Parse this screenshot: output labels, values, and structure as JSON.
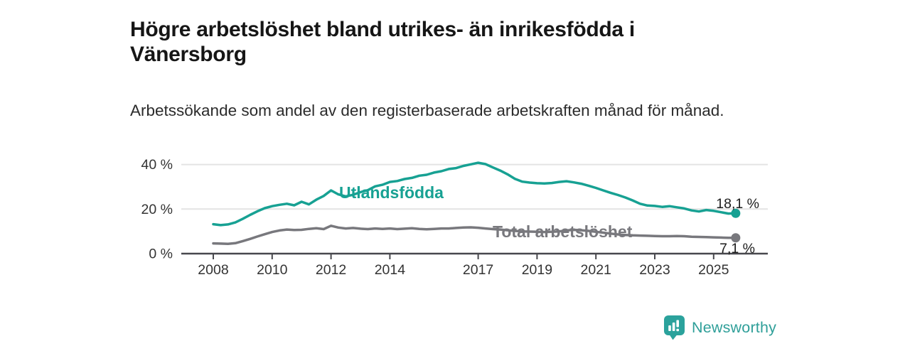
{
  "header": {
    "title": "Högre arbetslöshet bland utrikes- än inrikesfödda i Vänersborg",
    "subtitle": "Arbetssökande som andel av den registerbaserade arbetskraften månad för månad."
  },
  "colors": {
    "accent_teal": "#17a193",
    "series_gray": "#78787d",
    "grid": "#e4e4e4",
    "axis": "#48484d",
    "axis_text": "#333333",
    "logo_teal": "#2ba29c",
    "brand_text": "#2f9f99"
  },
  "chart_data": {
    "type": "line",
    "title": "Högre arbetslöshet bland utrikes- än inrikesfödda i Vänersborg",
    "subtitle": "Arbetssökande som andel av den registerbaserade arbetskraften månad för månad.",
    "unit": "%",
    "grid": true,
    "x_axis": {
      "range": [
        2006.9,
        2026.85
      ],
      "tick_values": [
        2008,
        2010,
        2012,
        2014,
        2017,
        2019,
        2021,
        2023,
        2025
      ],
      "tick_labels": [
        "2008",
        "2010",
        "2012",
        "2014",
        "2017",
        "2019",
        "2021",
        "2023",
        "2025"
      ]
    },
    "y_axis": {
      "range": [
        0,
        45
      ],
      "tick_values": [
        0,
        20,
        40
      ],
      "tick_labels": [
        "0 %",
        "20 %",
        "40 %"
      ]
    },
    "x_start": 2008.0,
    "x_step": 0.25,
    "series": [
      {
        "name": "Utlandsfödda",
        "color": "#17a193",
        "end_label": "18,1 %",
        "last_value": 18.1,
        "values": [
          13.2,
          12.8,
          13.1,
          14.0,
          15.6,
          17.4,
          19.0,
          20.4,
          21.3,
          21.9,
          22.4,
          21.7,
          23.3,
          22.1,
          24.2,
          25.9,
          28.4,
          26.6,
          25.7,
          26.4,
          27.6,
          28.5,
          30.2,
          30.9,
          32.2,
          32.6,
          33.5,
          34.0,
          35.0,
          35.4,
          36.4,
          37.0,
          38.0,
          38.4,
          39.4,
          40.1,
          40.8,
          40.2,
          38.7,
          37.3,
          35.6,
          33.6,
          32.3,
          31.9,
          31.6,
          31.5,
          31.7,
          32.2,
          32.5,
          32.0,
          31.4,
          30.5,
          29.5,
          28.4,
          27.3,
          26.3,
          25.2,
          23.9,
          22.4,
          21.6,
          21.4,
          21.0,
          21.3,
          20.8,
          20.3,
          19.4,
          18.9,
          19.6,
          19.2,
          18.6,
          18.0,
          18.1
        ]
      },
      {
        "name": "Total arbetslöshet",
        "color": "#78787d",
        "end_label": "7,1 %",
        "last_value": 7.1,
        "values": [
          4.6,
          4.5,
          4.4,
          4.7,
          5.6,
          6.6,
          7.7,
          8.7,
          9.7,
          10.4,
          10.8,
          10.6,
          10.7,
          11.1,
          11.4,
          11.0,
          12.5,
          11.7,
          11.3,
          11.5,
          11.2,
          11.0,
          11.3,
          11.1,
          11.3,
          11.0,
          11.2,
          11.4,
          11.1,
          10.9,
          11.1,
          11.3,
          11.3,
          11.5,
          11.7,
          11.8,
          11.6,
          11.3,
          11.0,
          10.8,
          10.5,
          10.2,
          10.0,
          9.9,
          9.8,
          9.7,
          9.8,
          10.0,
          10.4,
          10.7,
          10.5,
          10.2,
          9.8,
          9.4,
          9.0,
          8.6,
          8.4,
          8.2,
          8.1,
          8.0,
          7.9,
          7.8,
          7.8,
          7.9,
          7.8,
          7.6,
          7.5,
          7.4,
          7.3,
          7.2,
          7.1,
          7.1
        ]
      }
    ],
    "legend_position": "inline-labels"
  },
  "footer": {
    "brand": "Newsworthy",
    "logo_icon": "bar-chart-speech-bubble-icon"
  }
}
